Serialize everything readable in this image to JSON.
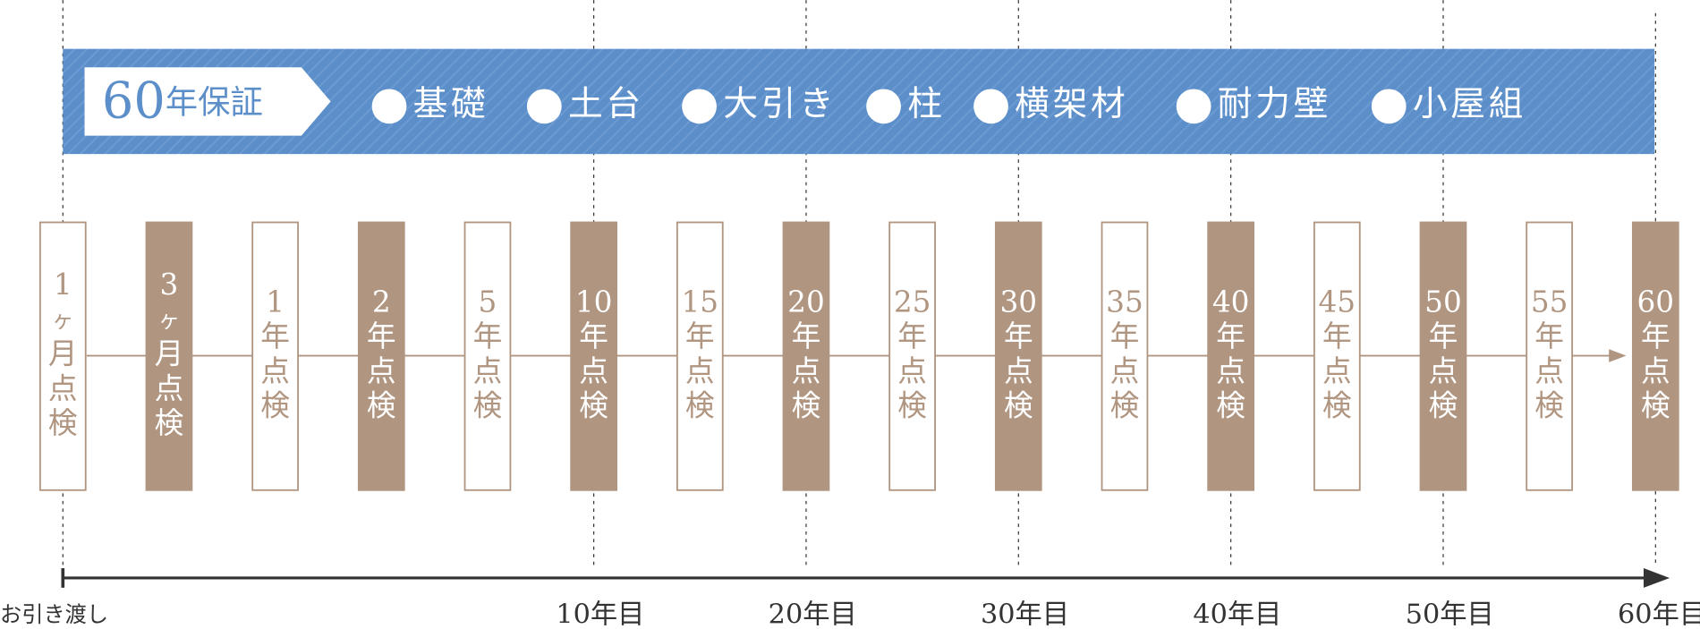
{
  "header": {
    "label": "60年保証",
    "items": [
      "基礎",
      "土台",
      "大引き",
      "柱",
      "横架材",
      "耐力壁",
      "小屋組"
    ]
  },
  "inspections": [
    {
      "label": "1ヶ月点検",
      "highlighted": false
    },
    {
      "label": "3ヶ月点検",
      "highlighted": true
    },
    {
      "label": "1年点検",
      "highlighted": false
    },
    {
      "label": "2年点検",
      "highlighted": true
    },
    {
      "label": "5年点検",
      "highlighted": false
    },
    {
      "label": "10年点検",
      "highlighted": true
    },
    {
      "label": "15年点検",
      "highlighted": false
    },
    {
      "label": "20年点検",
      "highlighted": true
    },
    {
      "label": "25年点検",
      "highlighted": false
    },
    {
      "label": "30年点検",
      "highlighted": true
    },
    {
      "label": "35年点検",
      "highlighted": false
    },
    {
      "label": "40年点検",
      "highlighted": true
    },
    {
      "label": "45年点検",
      "highlighted": false
    },
    {
      "label": "50年点検",
      "highlighted": true
    },
    {
      "label": "55年点検",
      "highlighted": false
    },
    {
      "label": "60年点検",
      "highlighted": true
    }
  ],
  "timeline": [
    {
      "label": "お引き渡し",
      "at": 0
    },
    {
      "label": "10年目",
      "at": 5
    },
    {
      "label": "20年目",
      "at": 7
    },
    {
      "label": "30年目",
      "at": 9
    },
    {
      "label": "40年目",
      "at": 11
    },
    {
      "label": "50年目",
      "at": 13
    },
    {
      "label": "60年目",
      "at": 15
    }
  ]
}
